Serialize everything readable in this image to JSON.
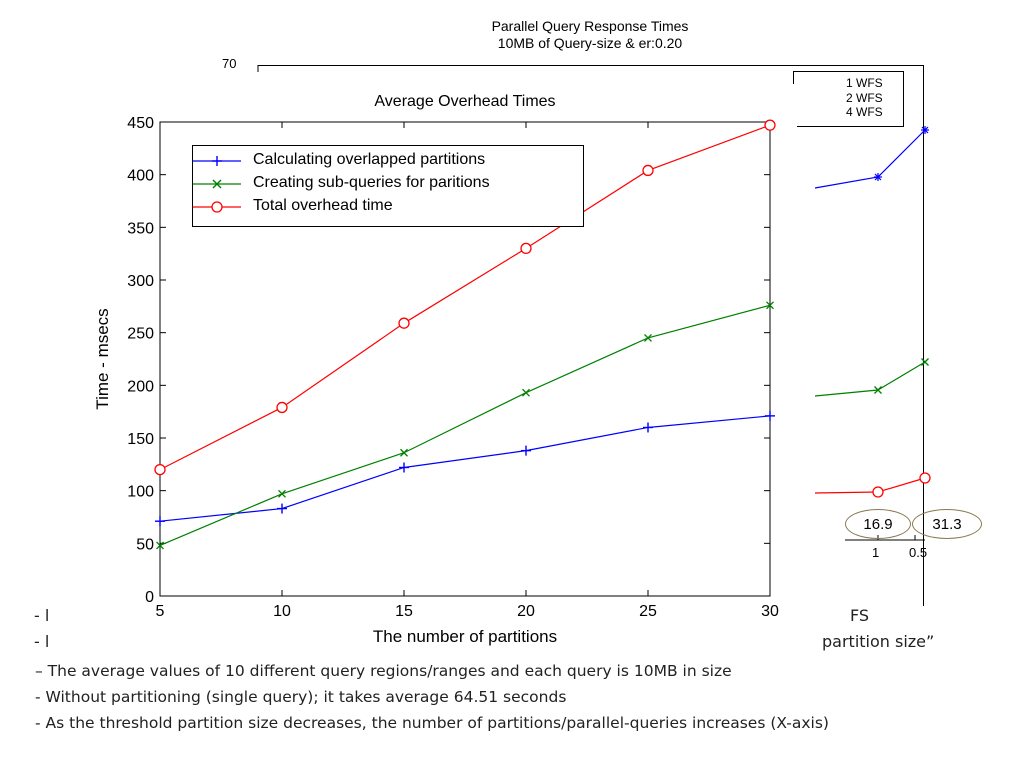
{
  "background_chart": {
    "title_line1": "Parallel Query Response Times",
    "title_line2": "10MB of Query-size & er:0.20",
    "ytick_top": "70",
    "legend": [
      "1 WFS",
      "2 WFS",
      "4 WFS"
    ],
    "bottom_ticks": [
      "1",
      "0.5"
    ],
    "callouts": [
      "16.9",
      "31.3"
    ],
    "partial_text": {
      "left_1": "- l",
      "left_2": "- l",
      "right_1": "FS",
      "right_2": "partition size”"
    },
    "colors": {
      "wfs1": "#0000ff",
      "wfs2": "#008000",
      "wfs4": "#ff0000"
    }
  },
  "notes": [
    "– The average values of 10 different query regions/ranges and each query is 10MB in size",
    "- Without partitioning (single query); it takes average 64.51 seconds",
    "- As the threshold partition size decreases, the number of partitions/parallel-queries increases (X-axis)"
  ],
  "chart_data": {
    "type": "line",
    "title": "Average Overhead Times",
    "xlabel": "The number of partitions",
    "ylabel": "Time - msecs",
    "x": [
      5,
      10,
      15,
      20,
      25,
      30
    ],
    "xlim": [
      5,
      30
    ],
    "ylim": [
      0,
      450
    ],
    "xticks": [
      5,
      10,
      15,
      20,
      25,
      30
    ],
    "yticks": [
      0,
      50,
      100,
      150,
      200,
      250,
      300,
      350,
      400,
      450
    ],
    "legend_position": "top-left",
    "series": [
      {
        "name": "Calculating overlapped partitions",
        "values": [
          71,
          83,
          122,
          138,
          160,
          171
        ],
        "color": "#0000ff",
        "marker": "plus"
      },
      {
        "name": "Creating sub-queries for paritions",
        "values": [
          48,
          97,
          136,
          193,
          245,
          276
        ],
        "color": "#008000",
        "marker": "x"
      },
      {
        "name": "Total overhead time",
        "values": [
          120,
          179,
          259,
          330,
          404,
          447
        ],
        "color": "#ff0000",
        "marker": "circle"
      }
    ]
  }
}
